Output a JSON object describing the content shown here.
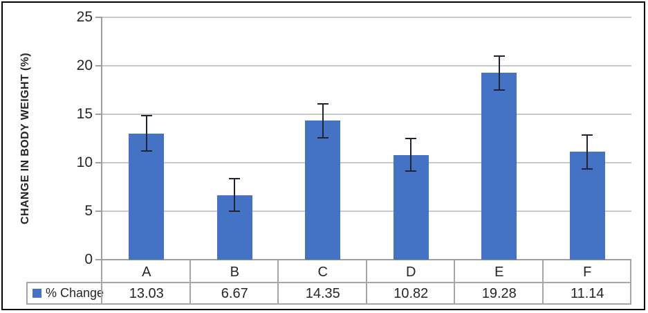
{
  "chart_data": {
    "type": "bar",
    "title": "",
    "categories": [
      "A",
      "B",
      "C",
      "D",
      "E",
      "F"
    ],
    "series": [
      {
        "name": "% Change",
        "values": [
          13.03,
          6.67,
          14.35,
          10.82,
          19.28,
          11.14
        ],
        "error_bars": [
          1.8,
          1.7,
          1.75,
          1.7,
          1.75,
          1.75
        ],
        "color": "#4472C4"
      }
    ],
    "xlabel": "",
    "ylabel": "CHANGE IN BODY WEIGHT (%)",
    "ylim": [
      0,
      25
    ],
    "yticks": [
      0,
      5,
      10,
      15,
      20,
      25
    ],
    "grid": true,
    "legend_position": "data-table-left",
    "data_table_shown": true,
    "value_format": "2-decimals"
  },
  "colors": {
    "bar": "#4472C4",
    "gridline": "#C9C9C9",
    "axis": "#9E9E9E",
    "table_border": "#A6A6A6",
    "error_bar": "#1F2430",
    "text": "#262626",
    "frame_border": "#000000",
    "background": "#FFFFFF"
  }
}
